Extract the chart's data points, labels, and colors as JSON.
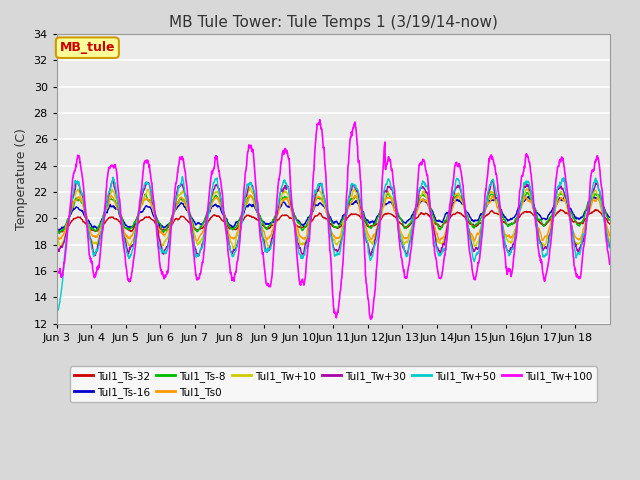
{
  "title": "MB Tule Tower: Tule Temps 1 (3/19/14-now)",
  "ylabel": "Temperature (C)",
  "ylim": [
    12,
    34
  ],
  "yticks": [
    12,
    14,
    16,
    18,
    20,
    22,
    24,
    26,
    28,
    30,
    32,
    34
  ],
  "x_labels": [
    "Jun 3",
    "Jun 4",
    "Jun 5",
    "Jun 6",
    "Jun 7",
    "Jun 8",
    "Jun 9",
    "Jun 10",
    "Jun 11",
    "Jun 12",
    "Jun 13",
    "Jun 14",
    "Jun 15",
    "Jun 16",
    "Jun 17",
    "Jun 18"
  ],
  "series_order": [
    "Tul1_Ts-32",
    "Tul1_Ts-16",
    "Tul1_Ts-8",
    "Tul1_Ts0",
    "Tul1_Tw+10",
    "Tul1_Tw+30",
    "Tul1_Tw+50",
    "Tul1_Tw+100"
  ],
  "series": {
    "Tul1_Ts-32": {
      "color": "#cc0000",
      "lw": 1.0
    },
    "Tul1_Ts-16": {
      "color": "#0000cc",
      "lw": 1.0
    },
    "Tul1_Ts-8": {
      "color": "#00bb00",
      "lw": 1.0
    },
    "Tul1_Ts0": {
      "color": "#ff9900",
      "lw": 1.0
    },
    "Tul1_Tw+10": {
      "color": "#cccc00",
      "lw": 1.0
    },
    "Tul1_Tw+30": {
      "color": "#aa00aa",
      "lw": 1.0
    },
    "Tul1_Tw+50": {
      "color": "#00cccc",
      "lw": 1.0
    },
    "Tul1_Tw+100": {
      "color": "#ff00ff",
      "lw": 1.2
    }
  },
  "legend_entries": [
    "Tul1_Ts-32",
    "Tul1_Ts-16",
    "Tul1_Ts-8",
    "Tul1_Ts0",
    "Tul1_Tw+10",
    "Tul1_Tw+30",
    "Tul1_Tw+50",
    "Tul1_Tw+100"
  ],
  "annotation_text": "MB_tule",
  "annotation_color": "#cc0000",
  "annotation_bg": "#ffff99",
  "annotation_edge": "#cc9900",
  "bg_color": "#d8d8d8",
  "plot_bg_color": "#ebebeb",
  "grid_color": "#ffffff",
  "title_fontsize": 11,
  "label_fontsize": 9,
  "tick_fontsize": 8,
  "n_days": 16,
  "pts_per_day": 96
}
